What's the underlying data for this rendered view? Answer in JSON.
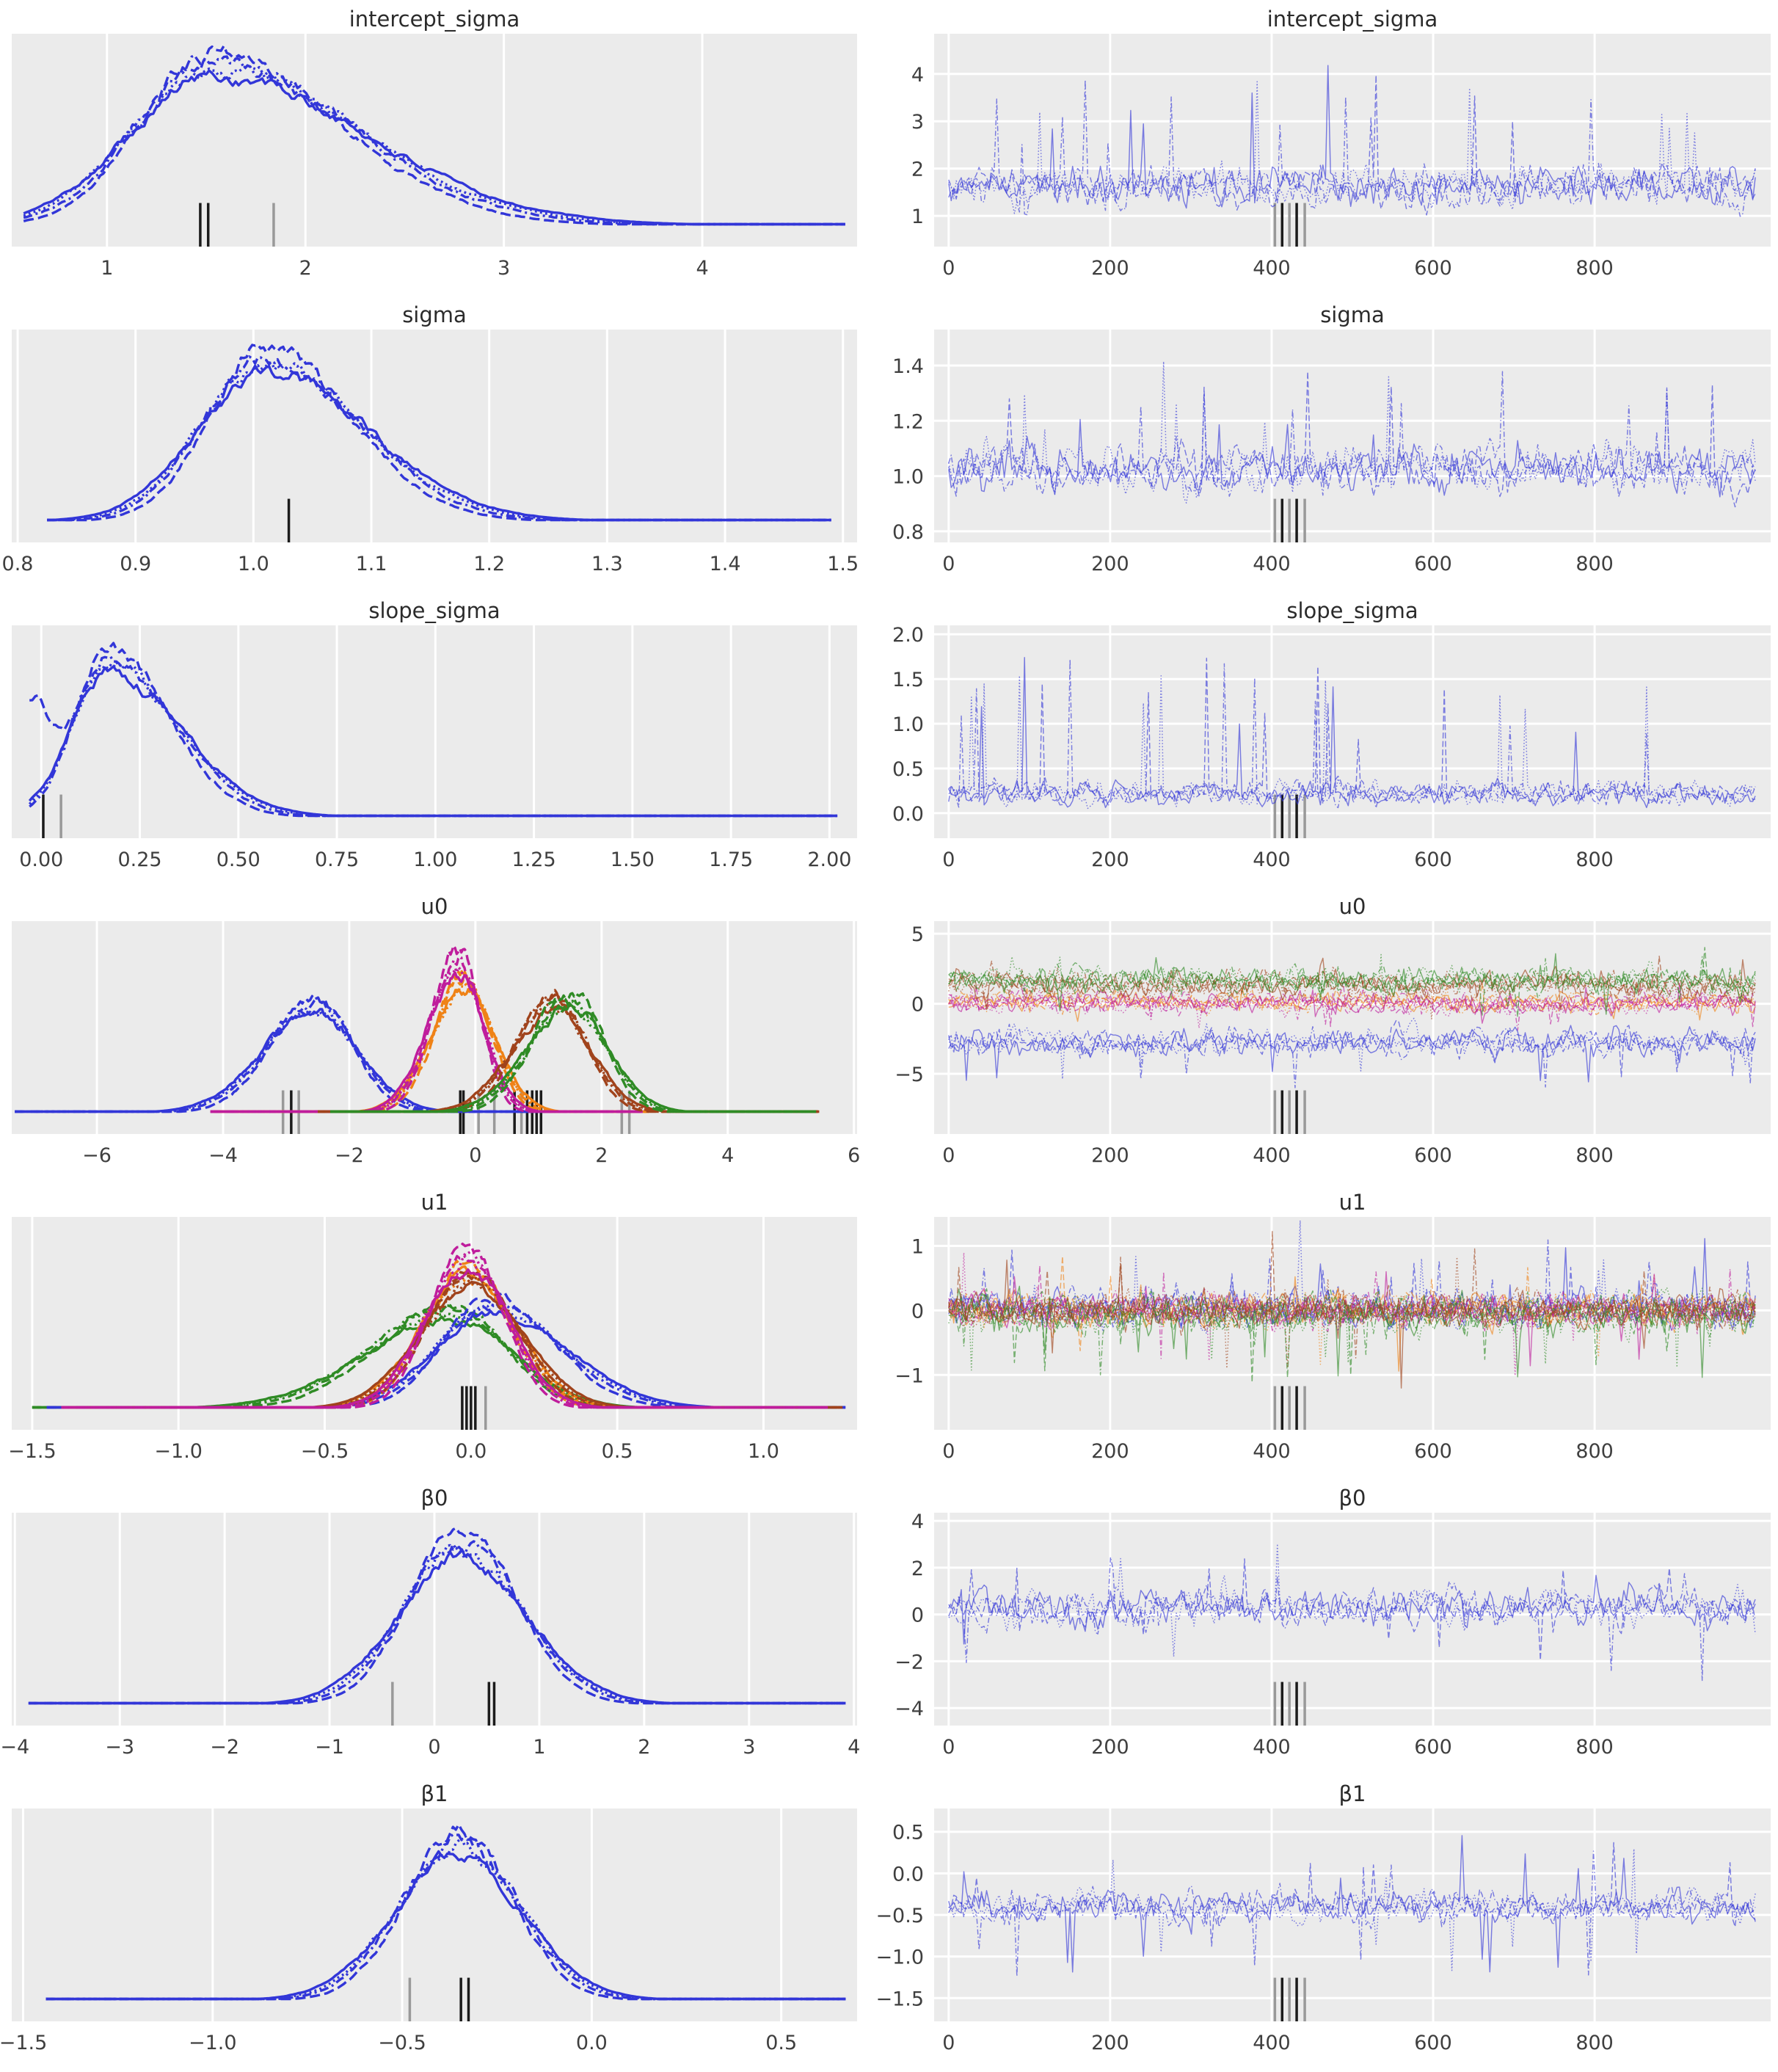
{
  "colors": {
    "plot_bg": "#ebebeb",
    "grid": "#ffffff",
    "tick_text": "#3f3f3f",
    "title_text": "#2b2b2b",
    "rug_black": "#1b1b1b",
    "rug_gray": "#999999",
    "blue": "#3236d8",
    "magenta": "#bf1d9c",
    "orange": "#ef8216",
    "sienna": "#a0431c",
    "green": "#2f8b25"
  },
  "line_styles": [
    {
      "name": "solid",
      "kde_dash": "",
      "trace_dash": ""
    },
    {
      "name": "dashed",
      "kde_dash": "14,6",
      "trace_dash": "8,3.5"
    },
    {
      "name": "dashdot",
      "kde_dash": "12,5,3,5",
      "trace_dash": "7,3,1.5,3"
    },
    {
      "name": "dotted",
      "kde_dash": "2.8,4.4",
      "trace_dash": "1.6,2.6"
    }
  ],
  "chart_data": {
    "type": "kde-trace-grid",
    "description": "Posterior density (left, KDE per chain linestyle) and MCMC trace (right) per parameter",
    "trace_xticks": [
      {
        "v": 0,
        "label": "0"
      },
      {
        "v": 200,
        "label": "200"
      },
      {
        "v": 400,
        "label": "400"
      },
      {
        "v": 600,
        "label": "600"
      },
      {
        "v": 800,
        "label": "800"
      }
    ],
    "trace_rug": [
      {
        "x": 404,
        "shade": "gray"
      },
      {
        "x": 413,
        "shade": "black"
      },
      {
        "x": 422,
        "shade": "gray"
      },
      {
        "x": 431,
        "shade": "black"
      },
      {
        "x": 441,
        "shade": "gray"
      }
    ],
    "rows": [
      {
        "param": "intercept_sigma",
        "kde": {
          "xmin": 0.52,
          "xmax": 4.78,
          "ticks": [
            {
              "v": 1,
              "label": "1"
            },
            {
              "v": 2,
              "label": "2"
            },
            {
              "v": 3,
              "label": "3"
            },
            {
              "v": 4,
              "label": "4"
            }
          ],
          "series": [
            {
              "color": "blue",
              "c": 1.52,
              "sl": 0.42,
              "sr": 0.78,
              "h": 0.97,
              "x0": 0.58,
              "x1": 4.72
            }
          ],
          "rug": [
            {
              "x": 1.47,
              "shade": "black"
            },
            {
              "x": 1.51,
              "shade": "black"
            },
            {
              "x": 1.84,
              "shade": "gray"
            }
          ]
        },
        "trace": {
          "ymin": 0.35,
          "ymax": 4.85,
          "yticks": [
            {
              "v": 4,
              "label": "4"
            },
            {
              "v": 3,
              "label": "3"
            },
            {
              "v": 2,
              "label": "2"
            },
            {
              "v": 1,
              "label": "1"
            }
          ],
          "series": [
            {
              "color": "blue",
              "mean": 1.62,
              "sd": 0.32,
              "spike": 2.4,
              "p": 0.022,
              "dir": 1
            }
          ]
        }
      },
      {
        "param": "sigma",
        "kde": {
          "xmin": 0.795,
          "xmax": 1.512,
          "ticks": [
            {
              "v": 0.8,
              "label": "0.8"
            },
            {
              "v": 0.9,
              "label": "0.9"
            },
            {
              "v": 1.0,
              "label": "1.0"
            },
            {
              "v": 1.1,
              "label": "1.1"
            },
            {
              "v": 1.2,
              "label": "1.2"
            },
            {
              "v": 1.3,
              "label": "1.3"
            },
            {
              "v": 1.4,
              "label": "1.4"
            },
            {
              "v": 1.5,
              "label": "1.5"
            }
          ],
          "series": [
            {
              "color": "blue",
              "c": 1.01,
              "sl": 0.058,
              "sr": 0.088,
              "h": 0.97,
              "x0": 0.825,
              "x1": 1.49
            }
          ],
          "rug": [
            {
              "x": 1.03,
              "shade": "black"
            }
          ]
        },
        "trace": {
          "ymin": 0.76,
          "ymax": 1.53,
          "yticks": [
            {
              "v": 1.4,
              "label": "1.4"
            },
            {
              "v": 1.2,
              "label": "1.2"
            },
            {
              "v": 1.0,
              "label": "1.0"
            },
            {
              "v": 0.8,
              "label": "0.8"
            }
          ],
          "series": [
            {
              "color": "blue",
              "mean": 1.025,
              "sd": 0.062,
              "spike": 0.34,
              "p": 0.02,
              "dir": 1
            }
          ]
        }
      },
      {
        "param": "slope_sigma",
        "kde": {
          "xmin": -0.075,
          "xmax": 2.07,
          "ticks": [
            {
              "v": 0,
              "label": "0.00"
            },
            {
              "v": 0.25,
              "label": "0.25"
            },
            {
              "v": 0.5,
              "label": "0.50"
            },
            {
              "v": 0.75,
              "label": "0.75"
            },
            {
              "v": 1.0,
              "label": "1.00"
            },
            {
              "v": 1.25,
              "label": "1.25"
            },
            {
              "v": 1.5,
              "label": "1.50"
            },
            {
              "v": 1.75,
              "label": "1.75"
            },
            {
              "v": 2.0,
              "label": "2.00"
            }
          ],
          "series": [
            {
              "color": "blue",
              "c": 0.17,
              "sl": 0.095,
              "sr": 0.185,
              "h": 0.95,
              "x0": -0.03,
              "x1": 2.02,
              "bump": {
                "c": -0.025,
                "s": 0.05,
                "h": 0.6,
                "style": 1
              }
            }
          ],
          "rug": [
            {
              "x": 0.005,
              "shade": "black"
            },
            {
              "x": 0.05,
              "shade": "gray"
            }
          ]
        },
        "trace": {
          "ymin": -0.28,
          "ymax": 2.1,
          "yticks": [
            {
              "v": 2.0,
              "label": "2.0"
            },
            {
              "v": 1.5,
              "label": "1.5"
            },
            {
              "v": 1.0,
              "label": "1.0"
            },
            {
              "v": 0.5,
              "label": "0.5"
            },
            {
              "v": 0.0,
              "label": "0.0"
            }
          ],
          "series": [
            {
              "color": "blue",
              "mean": 0.22,
              "sd": 0.1,
              "spike": 1.55,
              "p": 0.035,
              "dir": 1
            }
          ]
        }
      },
      {
        "param": "u0",
        "kde": {
          "xmin": -7.35,
          "xmax": 6.05,
          "ticks": [
            {
              "v": -6,
              "label": "−6"
            },
            {
              "v": -4,
              "label": "−4"
            },
            {
              "v": -2,
              "label": "−2"
            },
            {
              "v": 0,
              "label": "0"
            },
            {
              "v": 2,
              "label": "2"
            },
            {
              "v": 4,
              "label": "4"
            },
            {
              "v": 6,
              "label": "6"
            }
          ],
          "series": [
            {
              "color": "blue",
              "c": -2.55,
              "sl": 0.85,
              "sr": 0.72,
              "h": 0.64,
              "x0": -7.3,
              "x1": 1.35
            },
            {
              "color": "orange",
              "c": -0.17,
              "sl": 0.56,
              "sr": 0.5,
              "h": 0.78,
              "x0": -4.15,
              "x1": 2.75
            },
            {
              "color": "magenta",
              "c": -0.27,
              "sl": 0.5,
              "sr": 0.42,
              "h": 0.9,
              "x0": -4.2,
              "x1": 2.65
            },
            {
              "color": "sienna",
              "c": 1.25,
              "sl": 0.68,
              "sr": 0.6,
              "h": 0.66,
              "x0": -2.5,
              "x1": 5.45
            },
            {
              "color": "green",
              "c": 1.5,
              "sl": 0.7,
              "sr": 0.62,
              "h": 0.68,
              "x0": -2.3,
              "x1": 5.4
            }
          ],
          "rug": [
            {
              "x": -3.05,
              "shade": "gray"
            },
            {
              "x": -2.92,
              "shade": "black"
            },
            {
              "x": -2.8,
              "shade": "gray"
            },
            {
              "x": -0.24,
              "shade": "black"
            },
            {
              "x": -0.19,
              "shade": "black"
            },
            {
              "x": 0.05,
              "shade": "gray"
            },
            {
              "x": 0.3,
              "shade": "gray"
            },
            {
              "x": 0.62,
              "shade": "black"
            },
            {
              "x": 0.73,
              "shade": "gray"
            },
            {
              "x": 0.82,
              "shade": "black"
            },
            {
              "x": 0.9,
              "shade": "black"
            },
            {
              "x": 0.97,
              "shade": "black"
            },
            {
              "x": 1.04,
              "shade": "black"
            },
            {
              "x": 2.32,
              "shade": "gray"
            },
            {
              "x": 2.44,
              "shade": "gray"
            }
          ]
        },
        "trace": {
          "ymin": -9.3,
          "ymax": 5.9,
          "yticks": [
            {
              "v": 5,
              "label": "5"
            },
            {
              "v": 0,
              "label": "0"
            },
            {
              "v": -5,
              "label": "−5"
            }
          ],
          "series": [
            {
              "color": "orange",
              "mean": 0.15,
              "sd": 0.5,
              "spike": 1.2,
              "p": 0.015,
              "dir": 0
            },
            {
              "color": "magenta",
              "mean": 0.0,
              "sd": 0.58,
              "spike": 1.6,
              "p": 0.02,
              "dir": 0
            },
            {
              "color": "sienna",
              "mean": 1.35,
              "sd": 0.7,
              "spike": 2.2,
              "p": 0.02,
              "dir": 0
            },
            {
              "color": "green",
              "mean": 1.7,
              "sd": 0.7,
              "spike": 2.0,
              "p": 0.02,
              "dir": 0
            },
            {
              "color": "blue",
              "mean": -2.75,
              "sd": 0.75,
              "spike": 3.5,
              "p": 0.018,
              "dir": -1
            }
          ]
        }
      },
      {
        "param": "u1",
        "kde": {
          "xmin": -1.57,
          "xmax": 1.32,
          "ticks": [
            {
              "v": -1.5,
              "label": "−1.5"
            },
            {
              "v": -1.0,
              "label": "−1.0"
            },
            {
              "v": -0.5,
              "label": "−0.5"
            },
            {
              "v": 0.0,
              "label": "0.0"
            },
            {
              "v": 0.5,
              "label": "0.5"
            },
            {
              "v": 1.0,
              "label": "1.0"
            }
          ],
          "series": [
            {
              "color": "green",
              "c": -0.07,
              "sl": 0.3,
              "sr": 0.22,
              "h": 0.58,
              "x0": -1.5,
              "x1": 1.25
            },
            {
              "color": "blue",
              "c": 0.07,
              "sl": 0.2,
              "sr": 0.26,
              "h": 0.62,
              "x0": -1.45,
              "x1": 1.28
            },
            {
              "color": "orange",
              "c": -0.01,
              "sl": 0.17,
              "sr": 0.17,
              "h": 0.82,
              "x0": -1.4,
              "x1": 1.2
            },
            {
              "color": "sienna",
              "c": 0.0,
              "sl": 0.18,
              "sr": 0.18,
              "h": 0.78,
              "x0": -1.35,
              "x1": 1.27
            },
            {
              "color": "magenta",
              "c": -0.015,
              "sl": 0.15,
              "sr": 0.15,
              "h": 0.92,
              "x0": -1.4,
              "x1": 1.22
            }
          ],
          "rug": [
            {
              "x": -0.03,
              "shade": "black"
            },
            {
              "x": -0.015,
              "shade": "black"
            },
            {
              "x": 0.0,
              "shade": "black"
            },
            {
              "x": 0.015,
              "shade": "black"
            },
            {
              "x": 0.05,
              "shade": "gray"
            }
          ]
        },
        "trace": {
          "ymin": -1.85,
          "ymax": 1.45,
          "yticks": [
            {
              "v": 1,
              "label": "1"
            },
            {
              "v": 0,
              "label": "0"
            },
            {
              "v": -1,
              "label": "−1"
            }
          ],
          "series": [
            {
              "color": "blue",
              "mean": 0.03,
              "sd": 0.21,
              "spike": 0.95,
              "p": 0.02,
              "dir": 1
            },
            {
              "color": "orange",
              "mean": 0.0,
              "sd": 0.19,
              "spike": 0.85,
              "p": 0.015,
              "dir": 0
            },
            {
              "color": "magenta",
              "mean": 0.0,
              "sd": 0.19,
              "spike": 0.9,
              "p": 0.018,
              "dir": 0
            },
            {
              "color": "green",
              "mean": -0.05,
              "sd": 0.23,
              "spike": 1.05,
              "p": 0.025,
              "dir": -1
            },
            {
              "color": "sienna",
              "mean": 0.0,
              "sd": 0.19,
              "spike": 1.15,
              "p": 0.012,
              "dir": 0
            }
          ]
        }
      },
      {
        "param": "β0",
        "kde": {
          "xmin": -4.03,
          "xmax": 4.03,
          "ticks": [
            {
              "v": -4,
              "label": "−4"
            },
            {
              "v": -3,
              "label": "−3"
            },
            {
              "v": -2,
              "label": "−2"
            },
            {
              "v": -1,
              "label": "−1"
            },
            {
              "v": 0,
              "label": "0"
            },
            {
              "v": 1,
              "label": "1"
            },
            {
              "v": 2,
              "label": "2"
            },
            {
              "v": 3,
              "label": "3"
            },
            {
              "v": 4,
              "label": "4"
            }
          ],
          "series": [
            {
              "color": "blue",
              "c": 0.25,
              "sl": 0.6,
              "sr": 0.64,
              "h": 0.95,
              "x0": -3.87,
              "x1": 3.92
            }
          ],
          "rug": [
            {
              "x": -0.4,
              "shade": "gray"
            },
            {
              "x": 0.52,
              "shade": "black"
            },
            {
              "x": 0.57,
              "shade": "black"
            }
          ]
        },
        "trace": {
          "ymin": -4.75,
          "ymax": 4.35,
          "yticks": [
            {
              "v": 4,
              "label": "4"
            },
            {
              "v": 2,
              "label": "2"
            },
            {
              "v": 0,
              "label": "0"
            },
            {
              "v": -2,
              "label": "−2"
            },
            {
              "v": -4,
              "label": "−4"
            }
          ],
          "series": [
            {
              "color": "blue",
              "mean": 0.3,
              "sd": 0.58,
              "spike": 2.4,
              "p": 0.02,
              "dir": 0
            }
          ]
        }
      },
      {
        "param": "β1",
        "kde": {
          "xmin": -1.53,
          "xmax": 0.7,
          "ticks": [
            {
              "v": -1.5,
              "label": "−1.5"
            },
            {
              "v": -1.0,
              "label": "−1.0"
            },
            {
              "v": -0.5,
              "label": "−0.5"
            },
            {
              "v": 0.0,
              "label": "0.0"
            },
            {
              "v": 0.5,
              "label": "0.5"
            }
          ],
          "series": [
            {
              "color": "blue",
              "c": -0.35,
              "sl": 0.17,
              "sr": 0.17,
              "h": 0.95,
              "x0": -1.44,
              "x1": 0.67
            }
          ],
          "rug": [
            {
              "x": -0.48,
              "shade": "gray"
            },
            {
              "x": -0.345,
              "shade": "black"
            },
            {
              "x": -0.325,
              "shade": "black"
            }
          ]
        },
        "trace": {
          "ymin": -1.78,
          "ymax": 0.78,
          "yticks": [
            {
              "v": 0.5,
              "label": "0.5"
            },
            {
              "v": 0.0,
              "label": "0.0"
            },
            {
              "v": -0.5,
              "label": "−0.5"
            },
            {
              "v": -1.0,
              "label": "−1.0"
            },
            {
              "v": -1.5,
              "label": "−1.5"
            }
          ],
          "series": [
            {
              "color": "blue",
              "mean": -0.4,
              "sd": 0.14,
              "spike": 0.8,
              "p": 0.025,
              "dir": 0
            }
          ]
        }
      }
    ]
  }
}
